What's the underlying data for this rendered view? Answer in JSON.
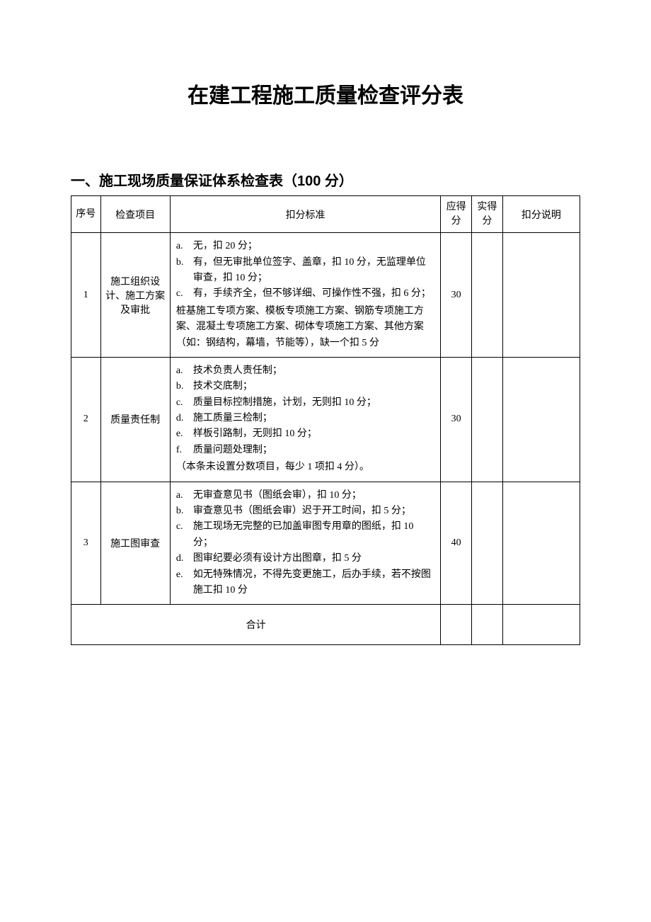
{
  "document": {
    "main_title": "在建工程施工质量检查评分表",
    "sub_title": "一、施工现场质量保证体系检查表（100 分）",
    "table": {
      "headers": {
        "seq": "序号",
        "item": "检查项目",
        "criteria": "扣分标准",
        "should_score": "应得分",
        "actual_score": "实得分",
        "notes": "扣分说明"
      },
      "rows": [
        {
          "seq": "1",
          "item": "施工组织设计、施工方案及审批",
          "criteria_a_marker": "a.",
          "criteria_a": "无，扣 20 分；",
          "criteria_b_marker": "b.",
          "criteria_b": "有，但无审批单位签字、盖章，扣 10 分，无监理单位审查，扣 10 分；",
          "criteria_c_marker": "c.",
          "criteria_c": "有，手续齐全，但不够详细、可操作性不强，扣 6 分；",
          "criteria_sub": "桩基施工专项方案、模板专项施工方案、钢筋专项施工方案、混凝土专项施工方案、砌体专项施工方案、其他方案（如：钢结构，幕墙，节能等），缺一个扣 5 分",
          "should_score": "30",
          "actual_score": "",
          "notes": ""
        },
        {
          "seq": "2",
          "item": "质量责任制",
          "criteria_a_marker": "a.",
          "criteria_a": "技术负责人责任制；",
          "criteria_b_marker": "b.",
          "criteria_b": "技术交底制；",
          "criteria_c_marker": "c.",
          "criteria_c": "质量目标控制措施，计划，无则扣 10 分；",
          "criteria_d_marker": "d.",
          "criteria_d": "施工质量三检制；",
          "criteria_e_marker": "e.",
          "criteria_e": "样板引路制，无则扣 10 分；",
          "criteria_f_marker": "f.",
          "criteria_f": "质量问题处理制；",
          "criteria_note": "（本条未设置分数项目，每少 1 项扣 4 分）。",
          "should_score": "30",
          "actual_score": "",
          "notes": ""
        },
        {
          "seq": "3",
          "item": "施工图审查",
          "criteria_a_marker": "a.",
          "criteria_a": "无审查意见书（图纸会审），扣 10 分；",
          "criteria_b_marker": "b.",
          "criteria_b": "审查意见书（图纸会审）迟于开工时间，扣 5 分；",
          "criteria_c_marker": "c.",
          "criteria_c": "施工现场无完整的已加盖审图专用章的图纸，扣 10 分；",
          "criteria_d_marker": "d.",
          "criteria_d": "图审纪要必须有设计方出图章，扣 5 分",
          "criteria_e_marker": "e.",
          "criteria_e": "如无特殊情况，不得先变更施工，后办手续，若不按图施工扣 10 分",
          "should_score": "40",
          "actual_score": "",
          "notes": ""
        }
      ],
      "total_label": "合计",
      "total_should": "",
      "total_actual": "",
      "total_notes": ""
    },
    "colors": {
      "background": "#ffffff",
      "text": "#000000",
      "border": "#000000"
    },
    "fonts": {
      "title_size_pt": 22,
      "subtitle_size_pt": 15,
      "body_size_pt": 11
    }
  }
}
